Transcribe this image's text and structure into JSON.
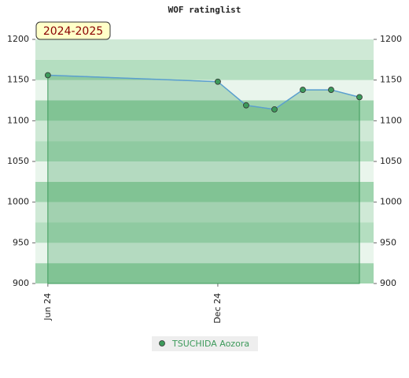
{
  "chart_data": {
    "type": "line",
    "title": "WOF ratinglist",
    "annotation": "2024-2025",
    "x": [
      0,
      6,
      7,
      8,
      9,
      10,
      11
    ],
    "xlim": [
      -0.44,
      11.5
    ],
    "xticks": [
      {
        "value": 0,
        "label": "Jun 24"
      },
      {
        "value": 6,
        "label": "Dec 24"
      }
    ],
    "ylim": [
      900,
      1200
    ],
    "yticks": [
      900,
      950,
      1000,
      1050,
      1100,
      1150,
      1200
    ],
    "series": [
      {
        "name": "TSUCHIDA Aozora",
        "color": "#3d9a5b",
        "line_color": "#5b9fd0",
        "values": [
          1156,
          1148,
          1119,
          1114,
          1138,
          1138,
          1129
        ]
      }
    ]
  }
}
